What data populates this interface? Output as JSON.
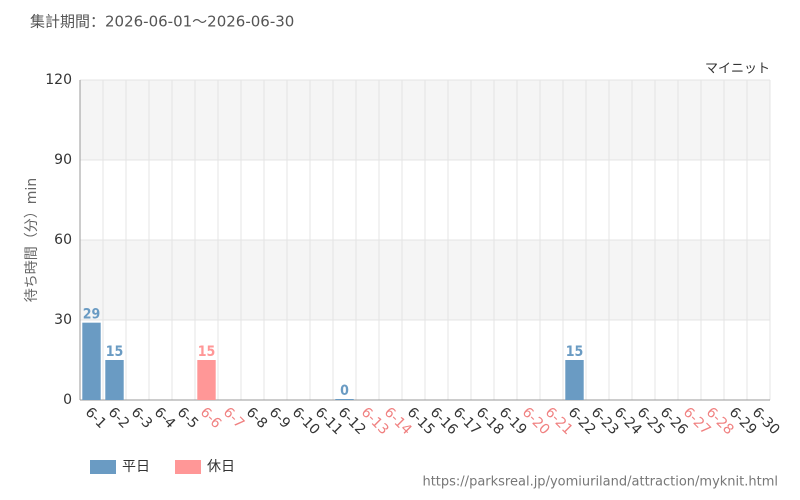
{
  "chart_data": {
    "type": "bar",
    "title": "集計期間：2026-06-01～2026-06-30",
    "subtitle": "マイニット",
    "y_label": "待ち時間（分）min",
    "source": "https://parksreal.jp/yomiuriland/attraction/myknit.html",
    "categories": [
      "6-1",
      "6-2",
      "6-3",
      "6-4",
      "6-5",
      "6-6",
      "6-7",
      "6-8",
      "6-9",
      "6-10",
      "6-11",
      "6-12",
      "6-13",
      "6-14",
      "6-15",
      "6-16",
      "6-17",
      "6-18",
      "6-19",
      "6-20",
      "6-21",
      "6-22",
      "6-23",
      "6-24",
      "6-25",
      "6-26",
      "6-27",
      "6-28",
      "6-29",
      "6-30"
    ],
    "category_label_colors": [
      "#333",
      "#333",
      "#333",
      "#333",
      "#333",
      "#f08080",
      "#f08080",
      "#333",
      "#333",
      "#333",
      "#333",
      "#333",
      "#f08080",
      "#f08080",
      "#333",
      "#333",
      "#333",
      "#333",
      "#333",
      "#f08080",
      "#f08080",
      "#333",
      "#333",
      "#333",
      "#333",
      "#333",
      "#f08080",
      "#f08080",
      "#333",
      "#333"
    ],
    "series": [
      {
        "name": "平日",
        "color": "#6a9bc3",
        "values": [
          29,
          15,
          null,
          null,
          null,
          null,
          null,
          null,
          null,
          null,
          null,
          0,
          null,
          null,
          null,
          null,
          null,
          null,
          null,
          null,
          null,
          15,
          null,
          null,
          null,
          null,
          null,
          null,
          null,
          null
        ]
      },
      {
        "name": "休日",
        "color": "#ff9797",
        "values": [
          null,
          null,
          null,
          null,
          null,
          15,
          null,
          null,
          null,
          null,
          null,
          null,
          null,
          null,
          null,
          null,
          null,
          null,
          null,
          null,
          null,
          null,
          null,
          null,
          null,
          null,
          null,
          null,
          null,
          null
        ]
      }
    ],
    "ylim": [
      0,
      120
    ],
    "yticks": [
      0,
      30,
      60,
      90,
      120
    ],
    "grid": true,
    "legend": "bottom-left"
  }
}
